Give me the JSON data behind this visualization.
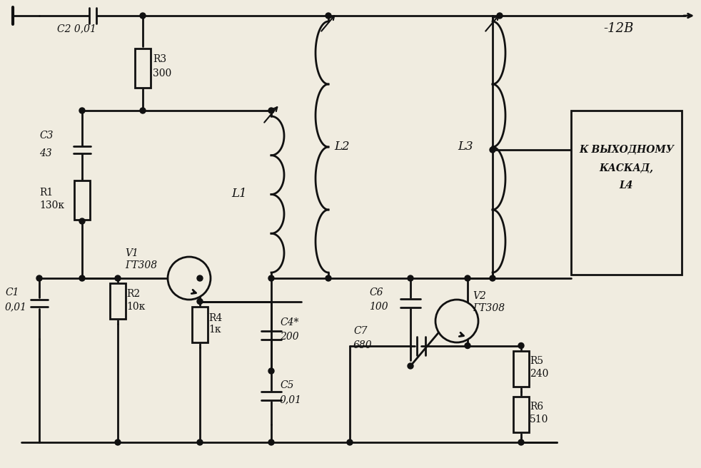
{
  "bg_color": "#f0ece0",
  "line_color": "#111111",
  "text_color": "#111111",
  "lw": 2.0,
  "components": {
    "C2": "0,01",
    "C3": "43",
    "C4*": "200",
    "C5": "0,01",
    "C6": "100",
    "C7": "680",
    "C1": "0,01",
    "R1": "130к",
    "R2": "10к",
    "R3": "300",
    "R4": "1к",
    "R5": "240",
    "R6": "510",
    "V1_label": "ГТ308",
    "V2_label": "ГТ308",
    "supply": "-12В",
    "out1": "К ВЫХОДНОМУ",
    "out2": "КАСКАД,",
    "out3": "L4"
  }
}
